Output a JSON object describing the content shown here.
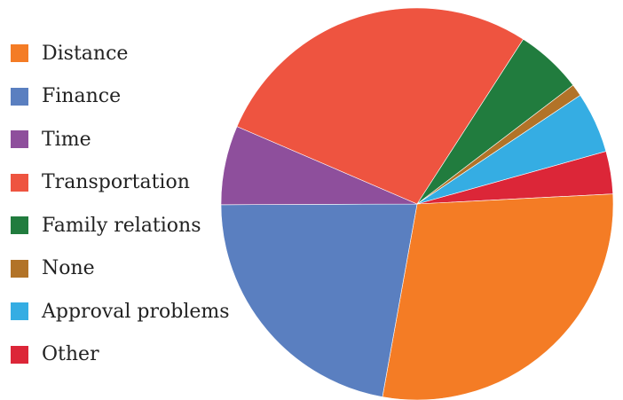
{
  "chart_data": {
    "type": "pie",
    "legend_position": "left",
    "categories": [
      "Distance",
      "Finance",
      "Time",
      "Transportation",
      "Family relations",
      "None",
      "Approval problems",
      "Other"
    ],
    "values": [
      28.5,
      22.0,
      6.5,
      27.5,
      5.5,
      1.0,
      5.0,
      3.5
    ],
    "colors": [
      "#f47c25",
      "#5a7fc0",
      "#8e4f9c",
      "#ee5440",
      "#217c3e",
      "#b27328",
      "#35ade3",
      "#dc2638"
    ]
  }
}
